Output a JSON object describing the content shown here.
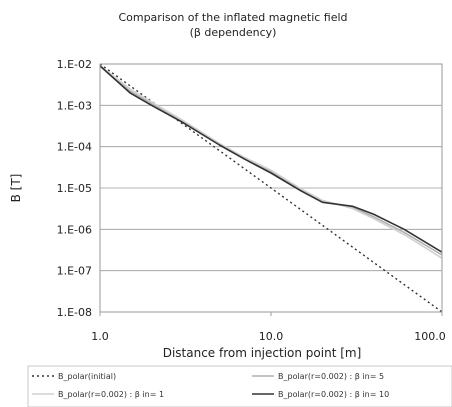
{
  "chart_data": {
    "type": "line",
    "title": "Comparison of the inflated magnetic field",
    "subtitle": "(β dependency)",
    "xlabel": "Distance from injection point [m]",
    "ylabel": "B [T]",
    "x_scale": "log",
    "y_scale": "log",
    "xlim": [
      1.0,
      100.0
    ],
    "ylim": [
      1e-08,
      0.01
    ],
    "x_ticks": [
      {
        "value": 1,
        "label": "1.0"
      },
      {
        "value": 10,
        "label": "10.0"
      },
      {
        "value": 100,
        "label": "100.0"
      }
    ],
    "y_ticks": [
      {
        "value": 0.01,
        "label": "1.E-02"
      },
      {
        "value": 0.001,
        "label": "1.E-03"
      },
      {
        "value": 0.0001,
        "label": "1.E-04"
      },
      {
        "value": 1e-05,
        "label": "1.E-05"
      },
      {
        "value": 1e-06,
        "label": "1.E-06"
      },
      {
        "value": 1e-07,
        "label": "1.E-07"
      },
      {
        "value": 1e-08,
        "label": "1.E-08"
      }
    ],
    "grid": "horizontal",
    "legend_position": "bottom",
    "series": [
      {
        "name": "B_polar(initial)",
        "color": "#333333",
        "style": "dotted",
        "points": [
          [
            1,
            0.01
          ],
          [
            100,
            1e-08
          ]
        ]
      },
      {
        "name": "B_polar(r=0.002) : β in= 5",
        "color": "#b0b0b0",
        "style": "solid",
        "points": [
          [
            1,
            0.009
          ],
          [
            1.5,
            0.0022
          ],
          [
            2,
            0.0011
          ],
          [
            3,
            0.00042
          ],
          [
            5,
            0.000115
          ],
          [
            7,
            5.2e-05
          ],
          [
            10,
            2.5e-05
          ],
          [
            15,
            9e-06
          ],
          [
            20,
            4.8e-06
          ],
          [
            30,
            3.4e-06
          ],
          [
            40,
            2e-06
          ],
          [
            60,
            8.5e-07
          ],
          [
            100,
            2.4e-07
          ]
        ]
      },
      {
        "name": "B_polar(r=0.002) : β in= 1",
        "color": "#d0d0d0",
        "style": "solid",
        "points": [
          [
            1,
            0.009
          ],
          [
            1.5,
            0.0025
          ],
          [
            2,
            0.0012
          ],
          [
            3,
            0.00045
          ],
          [
            5,
            0.00012
          ],
          [
            7,
            5.5e-05
          ],
          [
            10,
            2.7e-05
          ],
          [
            15,
            9.5e-06
          ],
          [
            20,
            5e-06
          ],
          [
            30,
            3.2e-06
          ],
          [
            40,
            1.8e-06
          ],
          [
            60,
            7.5e-07
          ],
          [
            100,
            2e-07
          ]
        ]
      },
      {
        "name": "B_polar(r=0.002) : β in= 10",
        "color": "#333333",
        "style": "solid",
        "points": [
          [
            1,
            0.009
          ],
          [
            1.5,
            0.002
          ],
          [
            2,
            0.001
          ],
          [
            3,
            0.0004
          ],
          [
            5,
            0.00011
          ],
          [
            7,
            5e-05
          ],
          [
            10,
            2.3e-05
          ],
          [
            15,
            8.5e-06
          ],
          [
            20,
            4.5e-06
          ],
          [
            30,
            3.6e-06
          ],
          [
            40,
            2.3e-06
          ],
          [
            60,
            1e-06
          ],
          [
            100,
            2.8e-07
          ]
        ]
      }
    ]
  }
}
